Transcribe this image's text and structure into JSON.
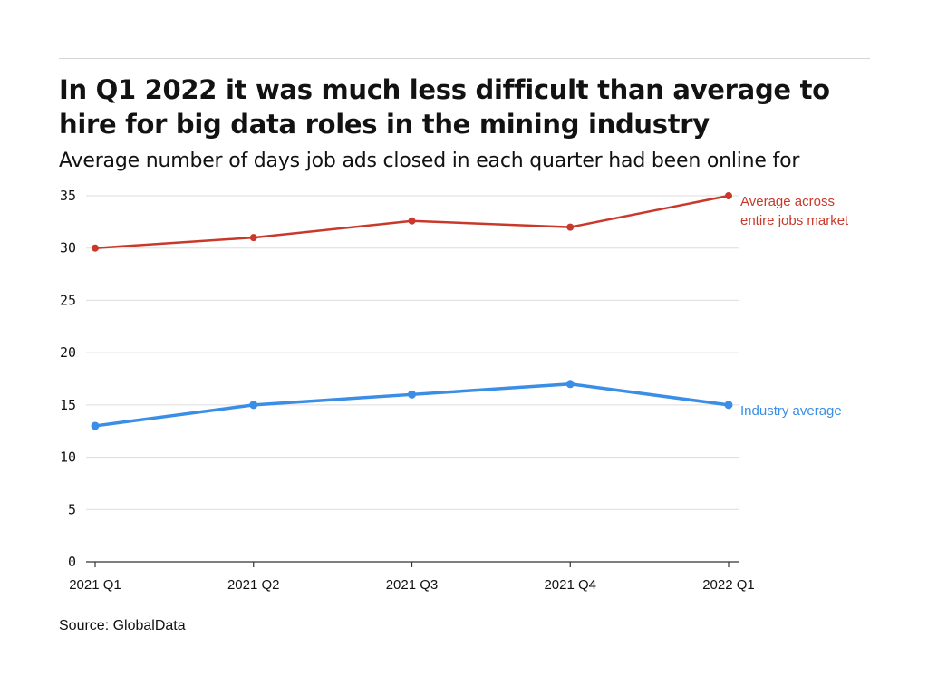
{
  "header": {
    "title": "In Q1 2022 it was much less difficult than average to hire for big data roles in the mining industry",
    "subtitle": "Average number of days job ads closed in each quarter had been online for"
  },
  "footer": {
    "source": "Source: GlobalData"
  },
  "colors": {
    "market": "#c9392b",
    "industry": "#3a8ee6",
    "grid": "#dddddd",
    "axis": "#333333"
  },
  "chart_data": {
    "type": "line",
    "categories": [
      "2021 Q1",
      "2021 Q2",
      "2021 Q3",
      "2021 Q4",
      "2022 Q1"
    ],
    "ylim": [
      0,
      35
    ],
    "yticks": [
      0,
      5,
      10,
      15,
      20,
      25,
      30,
      35
    ],
    "grid": true,
    "xlabel": "",
    "ylabel": "",
    "series": [
      {
        "name": "Average across entire jobs market",
        "label_lines": [
          "Average across",
          "entire jobs market"
        ],
        "color": "#c9392b",
        "values": [
          30,
          31,
          32.6,
          32,
          35
        ]
      },
      {
        "name": "Industry average",
        "label_lines": [
          "Industry average"
        ],
        "color": "#3a8ee6",
        "values": [
          13,
          15,
          16,
          17,
          15
        ]
      }
    ]
  }
}
